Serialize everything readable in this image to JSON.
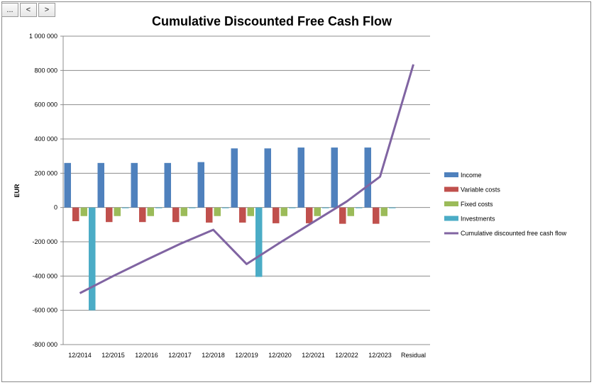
{
  "toolbar": {
    "more_label": "...",
    "prev_label": "<",
    "next_label": ">"
  },
  "chart_data": {
    "type": "bar",
    "title": "Cumulative Discounted Free Cash Flow",
    "ylabel": "EUR",
    "xlabel": "",
    "ylim": [
      -800000,
      1000000
    ],
    "yticks": [
      1000000,
      800000,
      600000,
      400000,
      200000,
      0,
      -200000,
      -400000,
      -600000,
      -800000
    ],
    "ytick_labels": [
      "1 000 000",
      "800 000",
      "600 000",
      "400 000",
      "200 000",
      "0",
      "-200 000",
      "-400 000",
      "-600 000",
      "-800 000"
    ],
    "categories": [
      "12/2014",
      "12/2015",
      "12/2016",
      "12/2017",
      "12/2018",
      "12/2019",
      "12/2020",
      "12/2021",
      "12/2022",
      "12/2023",
      "Residual"
    ],
    "grid": true,
    "legend_position": "right",
    "series": [
      {
        "name": "Income",
        "kind": "bar",
        "color": "#4F81BD",
        "values": [
          260000,
          260000,
          260000,
          260000,
          265000,
          345000,
          345000,
          350000,
          350000,
          350000,
          null
        ]
      },
      {
        "name": "Variable costs",
        "kind": "bar",
        "color": "#C0504D",
        "values": [
          -80000,
          -85000,
          -85000,
          -85000,
          -88000,
          -88000,
          -92000,
          -92000,
          -95000,
          -95000,
          null
        ]
      },
      {
        "name": "Fixed costs",
        "kind": "bar",
        "color": "#9BBB59",
        "values": [
          -50000,
          -50000,
          -50000,
          -50000,
          -50000,
          -50000,
          -50000,
          -50000,
          -50000,
          -50000,
          null
        ]
      },
      {
        "name": "Investments",
        "kind": "bar",
        "color": "#4BACC6",
        "values": [
          -600000,
          -3000,
          -3000,
          -3000,
          -3000,
          -405000,
          -3000,
          -3000,
          -3000,
          -3000,
          null
        ]
      },
      {
        "name": "Cumulative discounted free cash flow",
        "kind": "line",
        "color": "#8064A2",
        "values": [
          -500000,
          -400000,
          -305000,
          -213000,
          -130000,
          -330000,
          -205000,
          -85000,
          35000,
          180000,
          835000
        ]
      }
    ]
  }
}
